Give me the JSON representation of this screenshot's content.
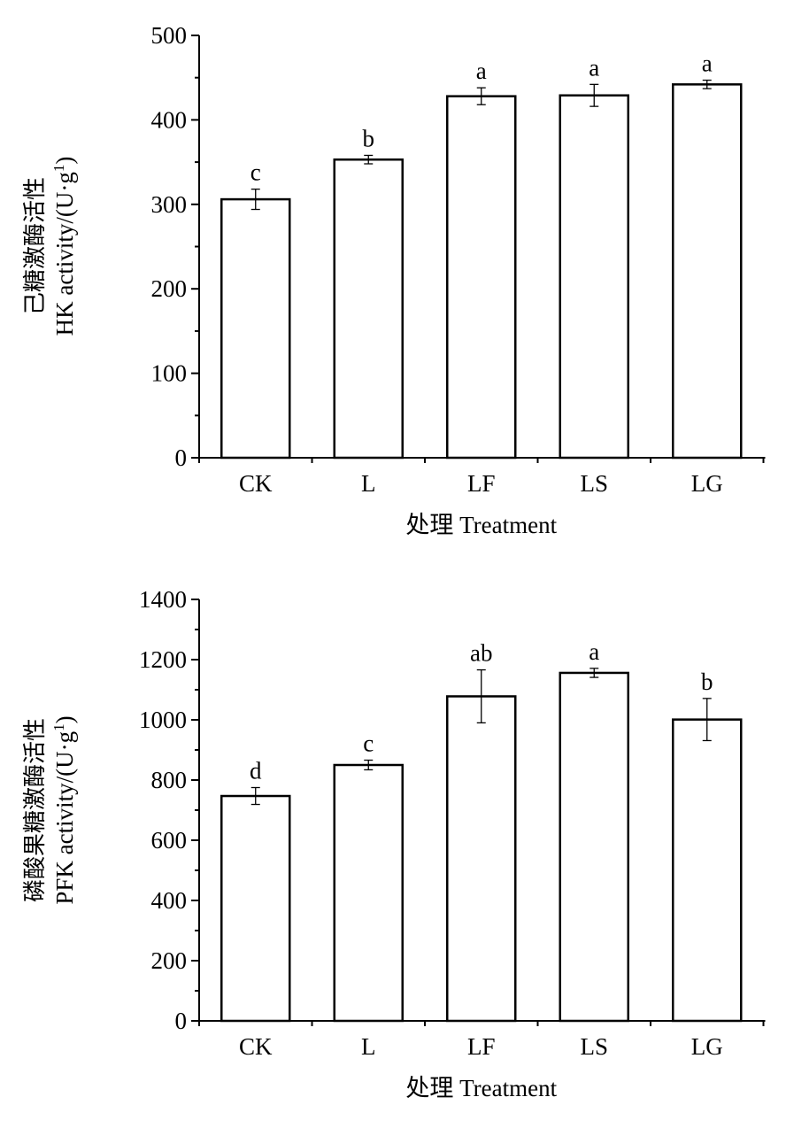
{
  "chart_data": [
    {
      "type": "bar",
      "title": "",
      "xlabel": "处理 Treatment",
      "ylabel_cn": "己糖激酶活性",
      "ylabel_en": "HK activity/(U·g",
      "ylabel_sup": "1",
      "ylabel_end": ")",
      "categories": [
        "CK",
        "L",
        "LF",
        "LS",
        "LG"
      ],
      "values": [
        306,
        353,
        428,
        429,
        442
      ],
      "errors": [
        12,
        5,
        10,
        13,
        5
      ],
      "letters": [
        "c",
        "b",
        "a",
        "a",
        "a"
      ],
      "ylim": [
        0,
        500
      ],
      "yticks": [
        0,
        100,
        200,
        300,
        400,
        500
      ],
      "minor_step": 50,
      "grid": false
    },
    {
      "type": "bar",
      "title": "",
      "xlabel": "处理 Treatment",
      "ylabel_cn": "磷酸果糖激酶活性",
      "ylabel_en": "PFK activity/(U·g",
      "ylabel_sup": "1",
      "ylabel_end": ")",
      "categories": [
        "CK",
        "L",
        "LF",
        "LS",
        "LG"
      ],
      "values": [
        747,
        850,
        1078,
        1156,
        1001
      ],
      "errors": [
        28,
        16,
        88,
        15,
        70
      ],
      "letters": [
        "d",
        "c",
        "ab",
        "a",
        "b"
      ],
      "ylim": [
        0,
        1400
      ],
      "yticks": [
        0,
        200,
        400,
        600,
        800,
        1000,
        1200,
        1400
      ],
      "minor_step": 100,
      "grid": false
    }
  ]
}
